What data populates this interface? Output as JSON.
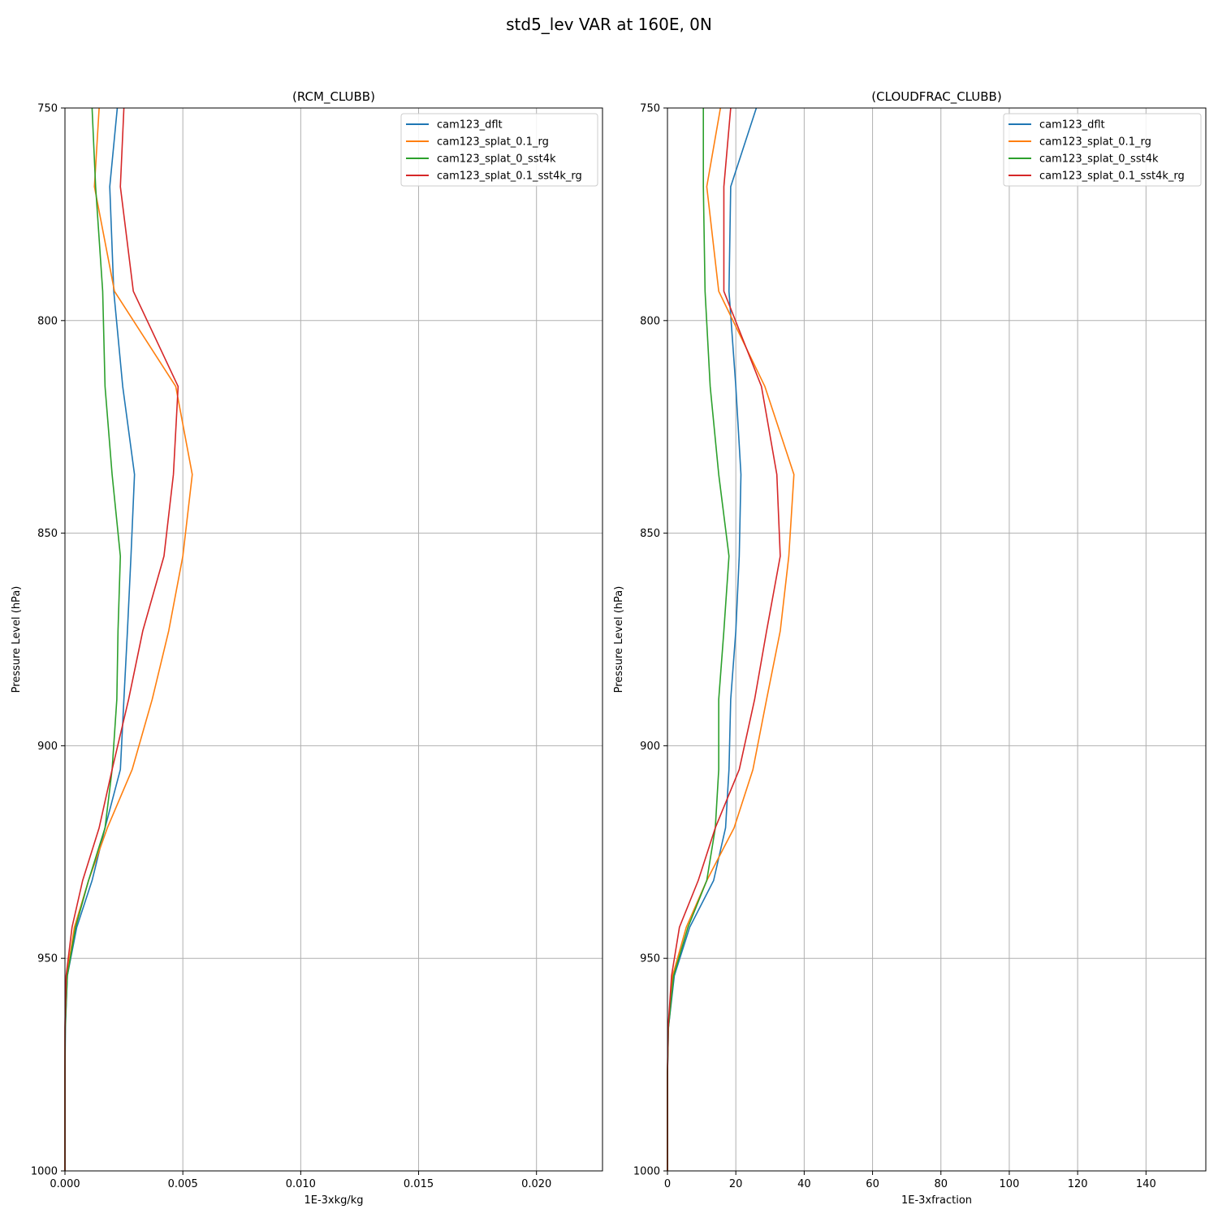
{
  "figure": {
    "suptitle": "std5_lev VAR at 160E, 0N"
  },
  "colors": {
    "cam123_dflt": "#1f77b4",
    "cam123_splat_0.1_rg": "#ff7f0e",
    "cam123_splat_0_sst4k": "#2ca02c",
    "cam123_splat_0.1_sst4k_rg": "#d62728",
    "grid": "#b0b0b0"
  },
  "chart_data": [
    {
      "type": "line",
      "title": "(RCM_CLUBB)",
      "xlabel": "1E-3xkg/kg",
      "ylabel": "Pressure Level (hPa)",
      "xlim": [
        0,
        0.0228
      ],
      "ylim": [
        1000,
        750
      ],
      "xticks": [
        0,
        0.005,
        0.01,
        0.015,
        0.02
      ],
      "xtick_labels": [
        "0.000",
        "0.005",
        "0.010",
        "0.015",
        "0.020"
      ],
      "yticks": [
        750,
        800,
        850,
        900,
        950,
        1000
      ],
      "ytick_labels": [
        "750",
        "800",
        "850",
        "900",
        "950",
        "1000"
      ],
      "grid": true,
      "legend": "upper-right",
      "y": [
        750,
        768.5,
        793.1,
        815.5,
        836.2,
        855.4,
        873,
        889.1,
        905.6,
        919.3,
        931.7,
        942.7,
        954.1,
        966.2,
        977.1,
        986.3,
        993.5,
        1000
      ],
      "series": [
        {
          "name": "cam123_dflt",
          "color_key": "cam123_dflt",
          "values": [
            0.00222,
            0.0019,
            0.00207,
            0.00245,
            0.00295,
            0.0028,
            0.00265,
            0.0025,
            0.00235,
            0.0017,
            0.00115,
            0.0005,
            0.0001,
            2e-05,
            0,
            0,
            0,
            0
          ]
        },
        {
          "name": "cam123_splat_0.1_rg",
          "color_key": "cam123_splat_0.1_rg",
          "values": [
            0.00145,
            0.00125,
            0.0021,
            0.0047,
            0.0054,
            0.005,
            0.0044,
            0.0037,
            0.00285,
            0.0018,
            0.001,
            0.0004,
            8e-05,
            1e-05,
            0,
            0,
            0,
            0
          ]
        },
        {
          "name": "cam123_splat_0_sst4k",
          "color_key": "cam123_splat_0_sst4k",
          "values": [
            0.00115,
            0.0013,
            0.0016,
            0.0017,
            0.002,
            0.00235,
            0.00225,
            0.0022,
            0.002,
            0.0017,
            0.001,
            0.00045,
            0.0001,
            1e-05,
            0,
            0,
            0,
            0
          ]
        },
        {
          "name": "cam123_splat_0.1_sst4k_rg",
          "color_key": "cam123_splat_0.1_sst4k_rg",
          "values": [
            0.0025,
            0.00235,
            0.0029,
            0.0048,
            0.0046,
            0.0042,
            0.0033,
            0.0027,
            0.002,
            0.00145,
            0.00075,
            0.0003,
            5e-05,
            0,
            0,
            0,
            0,
            0
          ]
        }
      ]
    },
    {
      "type": "line",
      "title": "(CLOUDFRAC_CLUBB)",
      "xlabel": "1E-3xfraction",
      "ylabel": "Pressure Level (hPa)",
      "xlim": [
        0,
        157.5
      ],
      "ylim": [
        1000,
        750
      ],
      "xticks": [
        0,
        20,
        40,
        60,
        80,
        100,
        120,
        140
      ],
      "xtick_labels": [
        "0",
        "20",
        "40",
        "60",
        "80",
        "100",
        "120",
        "140"
      ],
      "yticks": [
        750,
        800,
        850,
        900,
        950,
        1000
      ],
      "ytick_labels": [
        "750",
        "800",
        "850",
        "900",
        "950",
        "1000"
      ],
      "grid": true,
      "legend": "upper-right",
      "y": [
        750,
        768.5,
        793.1,
        815.5,
        836.2,
        855.4,
        873,
        889.1,
        905.6,
        919.3,
        931.7,
        942.7,
        954.1,
        966.2,
        977.1,
        986.3,
        993.5,
        1000
      ],
      "series": [
        {
          "name": "cam123_dflt",
          "color_key": "cam123_dflt",
          "values": [
            26,
            18.5,
            18,
            20,
            21.5,
            21,
            20,
            18.5,
            18,
            17,
            13.5,
            6.5,
            2,
            0.3,
            0,
            0,
            0,
            0
          ]
        },
        {
          "name": "cam123_splat_0.1_rg",
          "color_key": "cam123_splat_0.1_rg",
          "values": [
            15.5,
            11.5,
            15,
            28.5,
            37,
            35.5,
            33,
            29,
            25,
            19.5,
            11.5,
            5.5,
            1.5,
            0.2,
            0,
            0,
            0,
            0
          ]
        },
        {
          "name": "cam123_splat_0_sst4k",
          "color_key": "cam123_splat_0_sst4k",
          "values": [
            10.5,
            10.5,
            11,
            12.5,
            15,
            18,
            16.5,
            15,
            15,
            14,
            11.5,
            6,
            1.8,
            0.3,
            0,
            0,
            0,
            0
          ]
        },
        {
          "name": "cam123_splat_0.1_sst4k_rg",
          "color_key": "cam123_splat_0.1_sst4k_rg",
          "values": [
            18.5,
            16.5,
            16.5,
            27.5,
            32,
            33,
            29,
            25.5,
            21,
            14,
            9,
            3.5,
            1.2,
            0.2,
            0,
            0,
            0,
            0
          ]
        }
      ]
    }
  ]
}
